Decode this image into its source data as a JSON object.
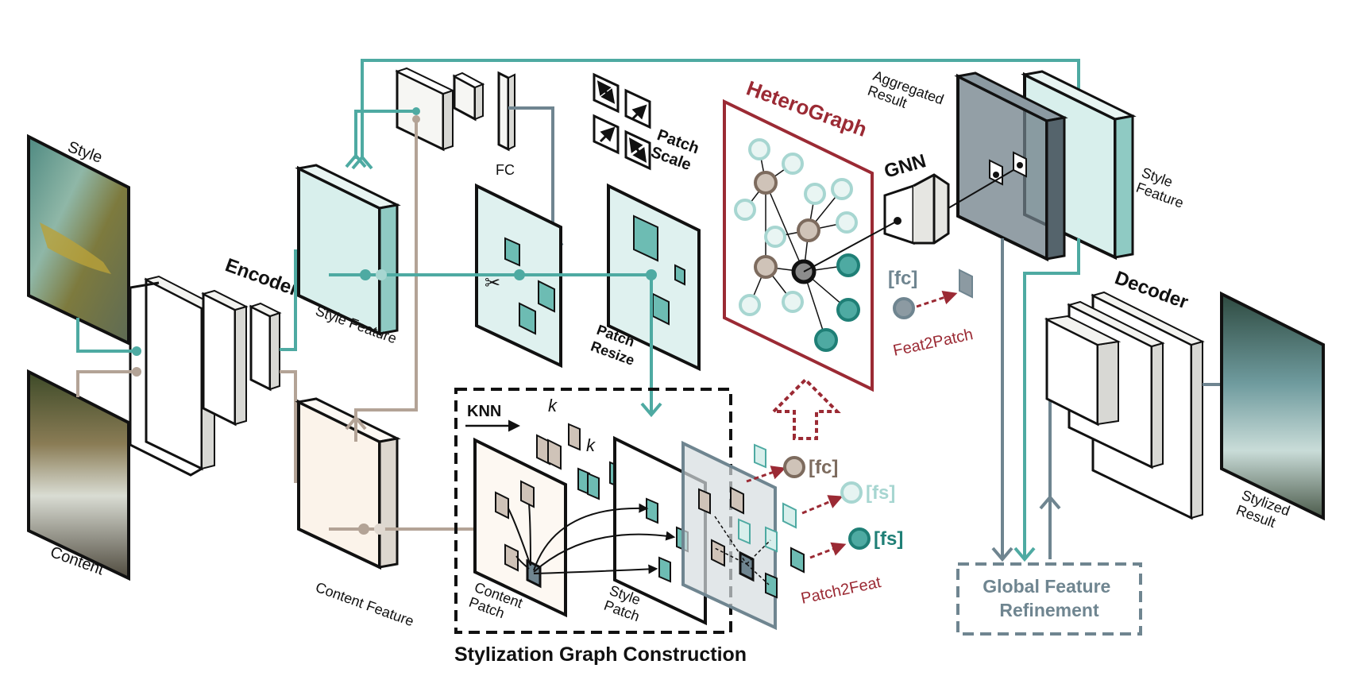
{
  "labels": {
    "style": "Style",
    "content": "Content",
    "encoder": "Encoder",
    "style_feature": "Style Feature",
    "content_feature": "Content Feature",
    "fc": "FC",
    "patch_scale": "Patch Scale",
    "patch_resize": "Patch Resize",
    "knn": "KNN",
    "k": "k",
    "content_patch": "Content Patch",
    "style_patch": "Style Patch",
    "stylization_graph_construction": "Stylization Graph Construction",
    "heterograph": "HeteroGraph",
    "gnn": "GNN",
    "fc_token": "[fc]",
    "fs_token": "[fs]",
    "feat2patch": "Feat2Patch",
    "patch2feat": "Patch2Feat",
    "aggregated_result": "Aggregated Result",
    "style_feature_right": "Style Feature",
    "decoder": "Decoder",
    "global_feature_refinement": "Global Feature Refinement",
    "stylized_result": "Stylized Result"
  },
  "colors": {
    "teal": "#4eaaa2",
    "teal_dark": "#1f7f76",
    "teal_light": "#bfe4e0",
    "brown": "#b3a396",
    "slate": "#6f8590",
    "crimson": "#9b2a34",
    "black": "#111111"
  }
}
